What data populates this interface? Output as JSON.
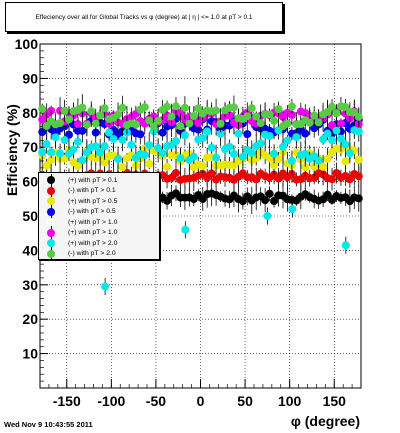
{
  "title": "Effeciency over all for Global Tracks vs φ (degree) at | η | <= 1.0 at pT > 0.1",
  "footer": "Wed Nov  9 10:43:55 2011",
  "chart_data": {
    "type": "scatter",
    "xlabel": "φ (degree)",
    "ylabel": "Efficiency (%)",
    "xlim": [
      -180,
      180
    ],
    "ylim": [
      0,
      100
    ],
    "x_ticks": [
      -150,
      -100,
      -50,
      0,
      50,
      100,
      150
    ],
    "y_ticks": [
      10,
      20,
      30,
      40,
      50,
      60,
      70,
      80,
      90,
      100
    ],
    "grid": true,
    "legend_position": "left-middle",
    "series": [
      {
        "name": "(+) with pT > 0.1",
        "color": "#000000",
        "level": 55.5,
        "spread": 1.2,
        "step": 5
      },
      {
        "name": "(-) with pT > 0.1",
        "color": "#ee0000",
        "level": 61.5,
        "spread": 1.1,
        "step": 5
      },
      {
        "name": "(+) with pT > 0.5",
        "color": "#e8e800",
        "level": 67.0,
        "spread": 2.8,
        "step": 5
      },
      {
        "name": "(-) with pT > 0.5",
        "color": "#0000ee",
        "level": 76.0,
        "spread": 2.4,
        "step": 5
      },
      {
        "name": "(+) with pT > 1.0",
        "color": "#ffffff",
        "level": 0,
        "spread": 0,
        "step": 0
      },
      {
        "name": "(+) with pT > 1.0",
        "color": "#ee00ee",
        "level": 78.5,
        "spread": 2.2,
        "step": 5
      },
      {
        "name": "(+) with pT > 2.0",
        "color": "#00e8e8",
        "level": 70.5,
        "spread": 4.5,
        "step": 5
      },
      {
        "name": "(-) with pT > 2.0",
        "color": "#55cc44",
        "level": 79.0,
        "spread": 3.0,
        "step": 5
      }
    ],
    "outliers": [
      {
        "series": 6,
        "x": -107,
        "y": 29.5
      },
      {
        "series": 6,
        "x": 163,
        "y": 41.5
      },
      {
        "series": 6,
        "x": -17,
        "y": 46
      },
      {
        "series": 6,
        "x": 75,
        "y": 50
      },
      {
        "series": 6,
        "x": 103,
        "y": 52
      }
    ]
  }
}
